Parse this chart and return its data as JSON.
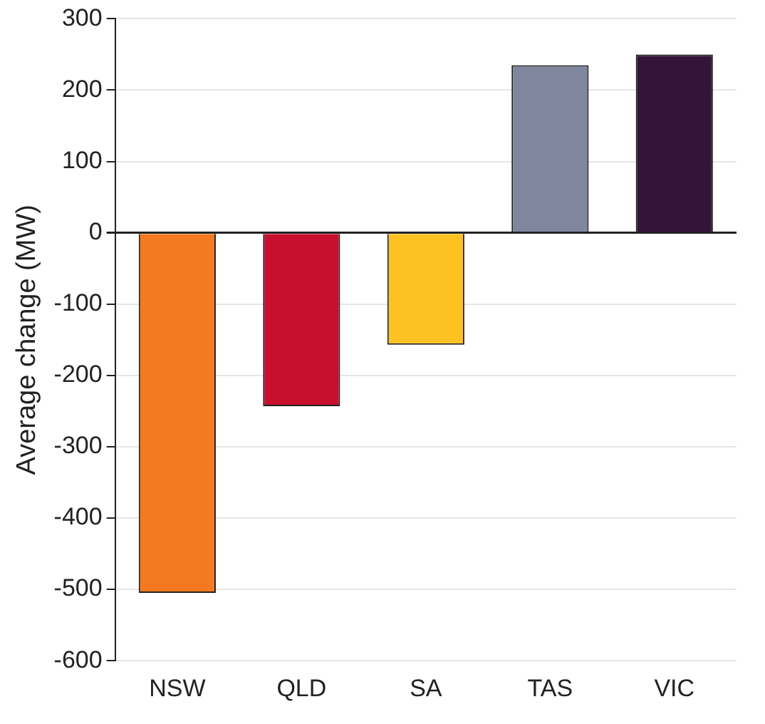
{
  "chart_data": {
    "type": "bar",
    "ylabel": "Average change (MW)",
    "categories": [
      "NSW",
      "QLD",
      "SA",
      "TAS",
      "VIC"
    ],
    "values": [
      -505,
      -243,
      -157,
      235,
      250
    ],
    "colors": [
      "#f47920",
      "#c8102e",
      "#fdc221",
      "#80869e",
      "#341539"
    ],
    "ylim": [
      -600,
      300
    ],
    "yticks": [
      -600,
      -500,
      -400,
      -300,
      -200,
      -100,
      0,
      100,
      200,
      300
    ],
    "grid": "y",
    "legend": false
  }
}
